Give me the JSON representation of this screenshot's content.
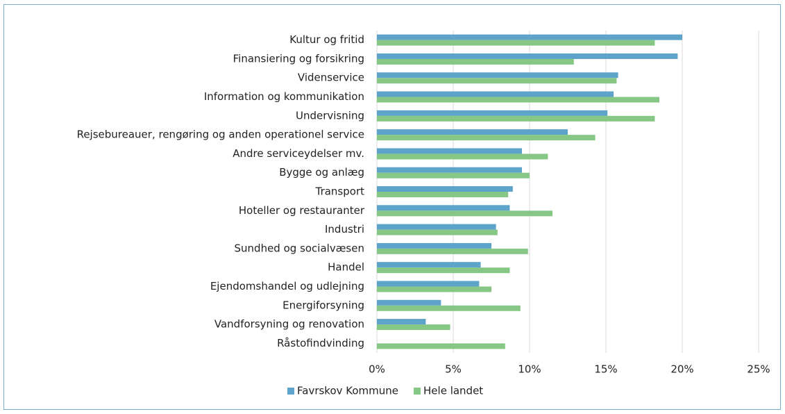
{
  "chart_data": {
    "type": "bar",
    "orientation": "horizontal",
    "categories": [
      "Kultur og fritid",
      "Finansiering og forsikring",
      "Videnservice",
      "Information og kommunikation",
      "Undervisning",
      "Rejsebureauer, rengøring og anden operationel service",
      "Andre serviceydelser  mv.",
      "Bygge og anlæg",
      "Transport",
      "Hoteller og restauranter",
      "Industri",
      "Sundhed og socialvæsen",
      "Handel",
      "Ejendomshandel og udlejning",
      "Energiforsyning",
      "Vandforsyning og renovation",
      "Råstofindvinding"
    ],
    "series": [
      {
        "name": "Favrskov Kommune",
        "color": "#5ea3c9",
        "values": [
          20.0,
          19.7,
          15.8,
          15.5,
          15.1,
          12.5,
          9.5,
          9.5,
          8.9,
          8.7,
          7.8,
          7.5,
          6.8,
          6.7,
          4.2,
          3.2,
          0
        ]
      },
      {
        "name": "Hele landet",
        "color": "#86c786",
        "values": [
          18.2,
          12.9,
          15.7,
          18.5,
          18.2,
          14.3,
          11.2,
          10.0,
          8.6,
          11.5,
          7.9,
          9.9,
          8.7,
          7.5,
          9.4,
          4.8,
          8.4
        ]
      }
    ],
    "xlim": [
      0,
      25
    ],
    "xticks": [
      {
        "value": 0,
        "label": "0%"
      },
      {
        "value": 5,
        "label": "5%"
      },
      {
        "value": 10,
        "label": "10%"
      },
      {
        "value": 15,
        "label": "15%"
      },
      {
        "value": 20,
        "label": "20%"
      },
      {
        "value": 25,
        "label": "25%"
      }
    ],
    "grid": true,
    "legend": "bottom"
  }
}
